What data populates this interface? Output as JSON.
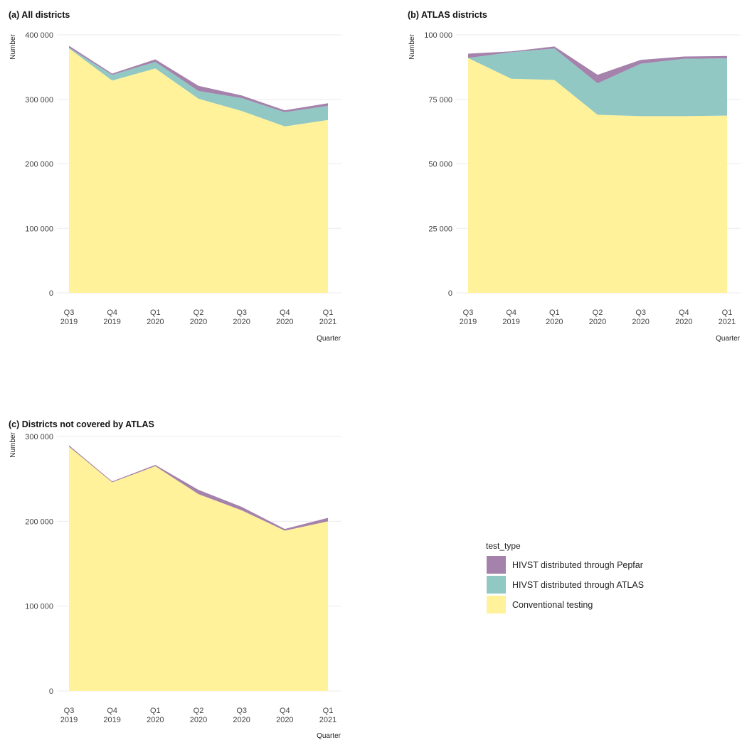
{
  "chart_data": [
    {
      "type": "area",
      "stacked": true,
      "title": "(a) All districts",
      "xlabel": "Quarter",
      "ylabel": "Number",
      "categories": [
        "Q3 2019",
        "Q4 2019",
        "Q1 2020",
        "Q2 2020",
        "Q3 2020",
        "Q4 2020",
        "Q1 2021"
      ],
      "category_labels": [
        [
          "Q3",
          "2019"
        ],
        [
          "Q4",
          "2019"
        ],
        [
          "Q1",
          "2020"
        ],
        [
          "Q2",
          "2020"
        ],
        [
          "Q3",
          "2020"
        ],
        [
          "Q4",
          "2020"
        ],
        [
          "Q1",
          "2021"
        ]
      ],
      "ylim": [
        0,
        400000
      ],
      "yticks": [
        0,
        100000,
        200000,
        300000,
        400000
      ],
      "ytick_labels": [
        "0",
        "100 000",
        "200 000",
        "300 000",
        "400 000"
      ],
      "series": [
        {
          "name": "Conventional testing",
          "values": [
            379000,
            329000,
            348000,
            301000,
            282000,
            258000,
            268000
          ]
        },
        {
          "name": "HIVST distributed through ATLAS",
          "values": [
            1000,
            9000,
            10000,
            12000,
            20000,
            22000,
            22000
          ]
        },
        {
          "name": "HIVST distributed through Pepfar",
          "values": [
            3000,
            2000,
            4000,
            8000,
            4000,
            3000,
            4000
          ]
        }
      ]
    },
    {
      "type": "area",
      "stacked": true,
      "title": "(b) ATLAS districts",
      "xlabel": "Quarter",
      "ylabel": "Number",
      "categories": [
        "Q3 2019",
        "Q4 2019",
        "Q1 2020",
        "Q2 2020",
        "Q3 2020",
        "Q4 2020",
        "Q1 2021"
      ],
      "category_labels": [
        [
          "Q3",
          "2019"
        ],
        [
          "Q4",
          "2019"
        ],
        [
          "Q1",
          "2020"
        ],
        [
          "Q2",
          "2020"
        ],
        [
          "Q3",
          "2020"
        ],
        [
          "Q4",
          "2020"
        ],
        [
          "Q1",
          "2021"
        ]
      ],
      "ylim": [
        0,
        100000
      ],
      "yticks": [
        0,
        25000,
        50000,
        75000,
        100000
      ],
      "ytick_labels": [
        "0",
        "25 000",
        "50 000",
        "75 000",
        "100 000"
      ],
      "series": [
        {
          "name": "Conventional testing",
          "values": [
            91000,
            83000,
            82500,
            69000,
            68500,
            68500,
            68700
          ]
        },
        {
          "name": "HIVST distributed through ATLAS",
          "values": [
            0,
            10300,
            12200,
            12200,
            20300,
            22200,
            22200
          ]
        },
        {
          "name": "HIVST distributed through Pepfar",
          "values": [
            1700,
            300,
            800,
            3300,
            1500,
            900,
            900
          ]
        }
      ]
    },
    {
      "type": "area",
      "stacked": true,
      "title": "(c) Districts not covered by ATLAS",
      "xlabel": "Quarter",
      "ylabel": "Number",
      "categories": [
        "Q3 2019",
        "Q4 2019",
        "Q1 2020",
        "Q2 2020",
        "Q3 2020",
        "Q4 2020",
        "Q1 2021"
      ],
      "category_labels": [
        [
          "Q3",
          "2019"
        ],
        [
          "Q4",
          "2019"
        ],
        [
          "Q1",
          "2020"
        ],
        [
          "Q2",
          "2020"
        ],
        [
          "Q3",
          "2020"
        ],
        [
          "Q4",
          "2020"
        ],
        [
          "Q1",
          "2021"
        ]
      ],
      "ylim": [
        0,
        300000
      ],
      "yticks": [
        0,
        100000,
        200000,
        300000
      ],
      "ytick_labels": [
        "0",
        "100 000",
        "200 000",
        "300 000"
      ],
      "series": [
        {
          "name": "Conventional testing",
          "values": [
            288000,
            246000,
            265000,
            232000,
            213000,
            189000,
            200000
          ]
        },
        {
          "name": "HIVST distributed through ATLAS",
          "values": [
            0,
            0,
            0,
            0,
            0,
            0,
            0
          ]
        },
        {
          "name": "HIVST distributed through Pepfar",
          "values": [
            1500,
            1000,
            1500,
            5000,
            4000,
            2000,
            4000
          ]
        }
      ]
    }
  ],
  "legend": {
    "title": "test_type",
    "items": [
      {
        "label": "HIVST distributed through Pepfar",
        "color": "#a582ab"
      },
      {
        "label": "HIVST distributed through ATLAS",
        "color": "#91c8c4"
      },
      {
        "label": "Conventional testing",
        "color": "#fff29a"
      }
    ]
  },
  "colors": {
    "Conventional testing": "#fff29a",
    "HIVST distributed through ATLAS": "#91c8c4",
    "HIVST distributed through Pepfar": "#a582ab"
  }
}
